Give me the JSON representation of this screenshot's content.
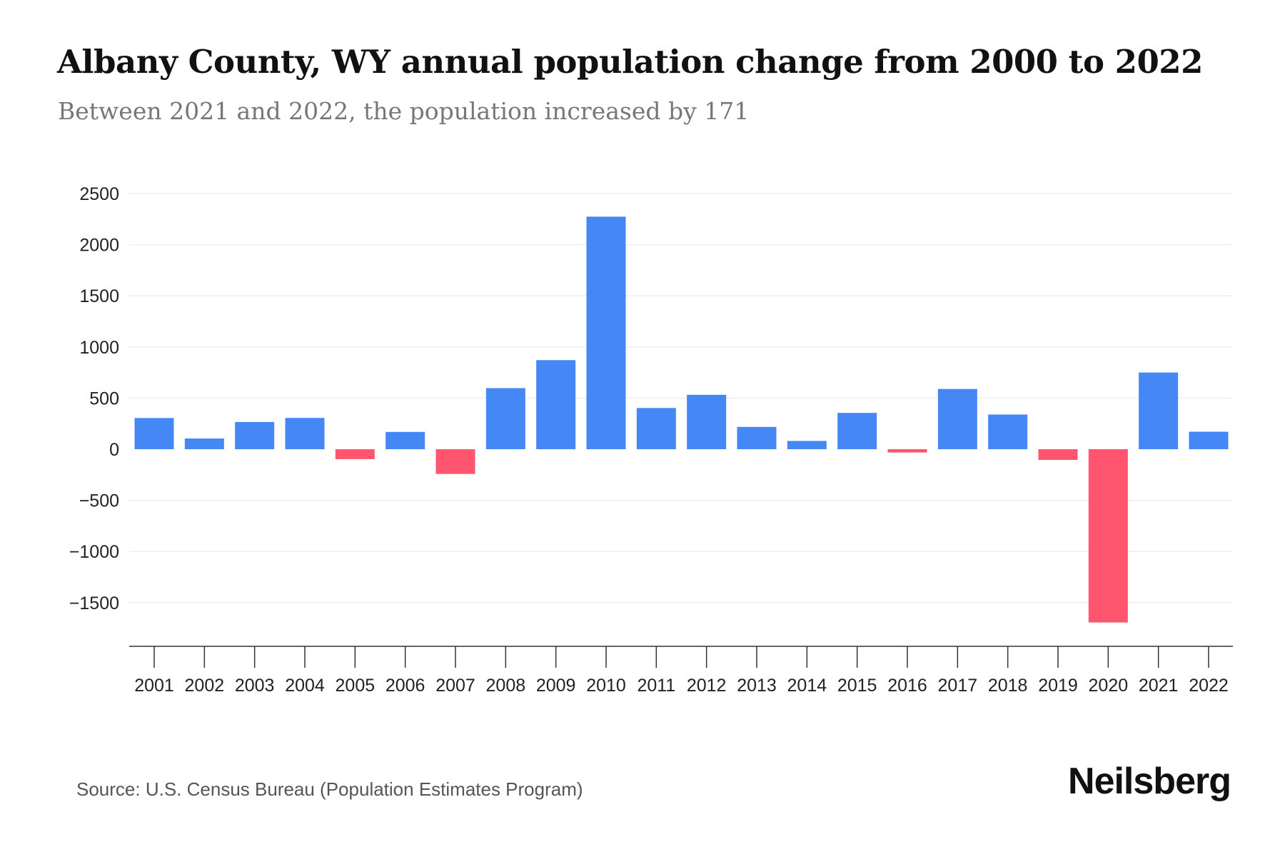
{
  "title": "Albany County, WY annual population change from 2000 to 2022",
  "subtitle": "Between 2021 and 2022, the population increased by 171",
  "source": "Source: U.S. Census Bureau (Population Estimates Program)",
  "brand": "Neilsberg",
  "colors": {
    "positive": "#4587F4",
    "negative": "#FF556E",
    "grid": "#EEEEEE",
    "axis": "#333333"
  },
  "chart_data": {
    "type": "bar",
    "title": "Albany County, WY annual population change from 2000 to 2022",
    "xlabel": "",
    "ylabel": "",
    "ylim": [
      -1900,
      2500
    ],
    "yticks": [
      2500,
      2000,
      1500,
      1000,
      500,
      0,
      -500,
      -1000,
      -1500
    ],
    "ytick_labels": [
      "2500",
      "2000",
      "1500",
      "1000",
      "500",
      "0",
      "−500",
      "−1000",
      "−1500"
    ],
    "grid": true,
    "categories": [
      "2001",
      "2002",
      "2003",
      "2004",
      "2005",
      "2006",
      "2007",
      "2008",
      "2009",
      "2010",
      "2011",
      "2012",
      "2013",
      "2014",
      "2015",
      "2016",
      "2017",
      "2018",
      "2019",
      "2020",
      "2021",
      "2022"
    ],
    "values": [
      305,
      105,
      266,
      306,
      -97,
      169,
      -242,
      597,
      871,
      2274,
      403,
      532,
      218,
      81,
      355,
      -32,
      589,
      339,
      -105,
      -1694,
      750,
      171
    ]
  }
}
